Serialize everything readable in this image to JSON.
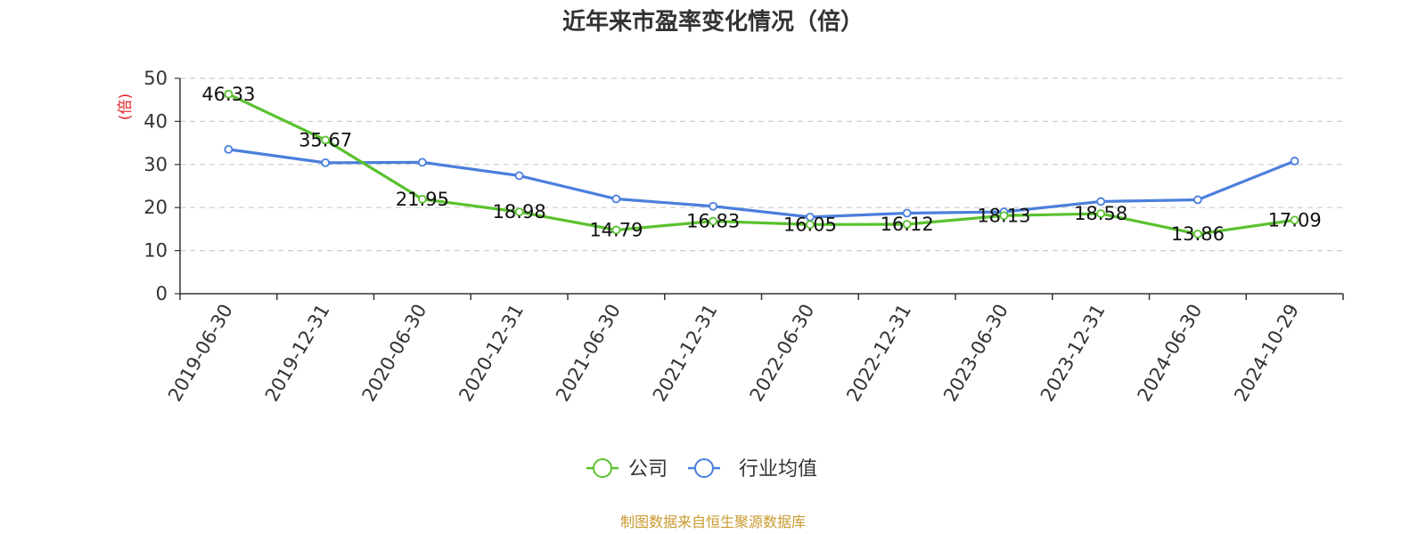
{
  "chart_data": {
    "type": "line",
    "title": "近年来市盈率变化情况（倍）",
    "ylabel": "(倍)",
    "xlabel": "",
    "ylim": [
      0,
      50
    ],
    "yticks": [
      0,
      10,
      20,
      30,
      40,
      50
    ],
    "grid": true,
    "legend_position": "bottom",
    "categories": [
      "2019-06-30",
      "2019-12-31",
      "2020-06-30",
      "2020-12-31",
      "2021-06-30",
      "2021-12-31",
      "2022-06-30",
      "2022-12-31",
      "2023-06-30",
      "2023-12-31",
      "2024-06-30",
      "2024-10-29"
    ],
    "series": [
      {
        "name": "公司",
        "color": "#5ac12f",
        "show_labels": true,
        "values": [
          46.33,
          35.67,
          21.95,
          18.98,
          14.79,
          16.83,
          16.05,
          16.12,
          18.13,
          18.58,
          13.86,
          17.09
        ]
      },
      {
        "name": "行业均值",
        "color": "#4a7fdc",
        "show_labels": false,
        "values": [
          33.5,
          30.4,
          30.5,
          27.4,
          22.0,
          20.3,
          17.8,
          18.7,
          19.0,
          21.4,
          21.8,
          30.8
        ]
      }
    ],
    "ylabel_color": "#e02020",
    "source": "制图数据来自恒生聚源数据库",
    "source_color": "#c89a2e"
  }
}
